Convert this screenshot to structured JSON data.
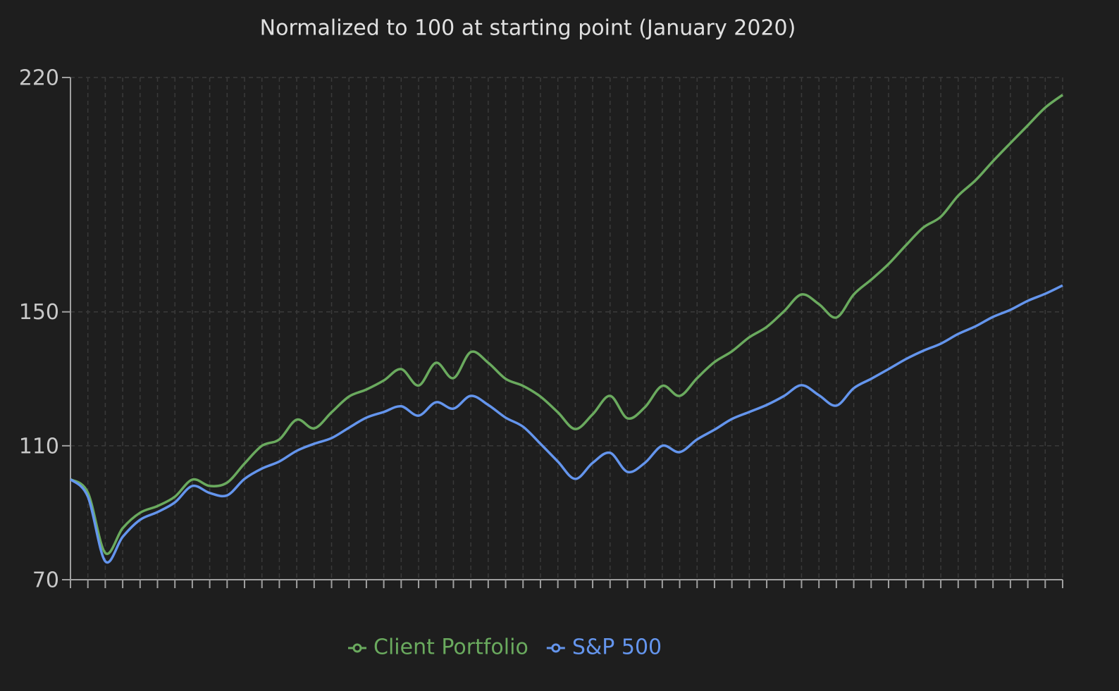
{
  "chart_data": {
    "type": "line",
    "title": "Normalized to 100 at starting point (January 2020)",
    "categories": [
      null,
      null,
      null,
      null,
      null,
      null,
      null,
      null,
      null,
      null,
      null,
      null,
      null,
      null,
      null,
      null,
      null,
      null,
      null,
      null,
      null,
      null,
      null,
      null,
      null,
      null,
      null,
      null,
      null,
      null,
      null,
      null,
      null,
      null,
      null,
      null,
      null,
      null,
      null,
      null,
      null,
      null,
      null,
      null,
      null,
      null,
      null,
      null,
      null,
      null,
      null,
      null,
      null,
      null,
      null,
      null,
      null,
      null
    ],
    "series": [
      {
        "name": "Client Portfolio",
        "color": "#6aaa5e",
        "values": [
          100,
          96,
          78,
          85.4,
          90,
          92,
          94.8,
          99.9,
          98,
          99,
          104.7,
          110,
          111.9,
          117.8,
          115.2,
          120,
          124.7,
          126.8,
          129.5,
          132.9,
          128,
          134.8,
          130.2,
          138,
          134.8,
          130,
          127.9,
          124.7,
          120,
          115,
          119.4,
          124.9,
          118.2,
          121.5,
          127.9,
          124.9,
          130.2,
          135,
          138.2,
          142.4,
          145.5,
          150.2,
          155.2,
          152.3,
          148.3,
          155.2,
          159.6,
          164.3,
          169.9,
          175.2,
          178.4,
          184.7,
          189.3,
          195,
          200.4,
          205.7,
          211,
          214.8
        ]
      },
      {
        "name": "S&P 500",
        "color": "#6495ed",
        "values": [
          100,
          94.8,
          75.5,
          82.8,
          87.9,
          90.2,
          93.1,
          98,
          95.9,
          95.2,
          100.1,
          103.2,
          105.3,
          108.5,
          110.6,
          112.3,
          115.4,
          118.4,
          120.1,
          121.8,
          119,
          123,
          121.1,
          124.9,
          122.2,
          118.4,
          115.7,
          110.6,
          105.3,
          100.1,
          104.9,
          107.9,
          102.2,
          104.9,
          110,
          108.1,
          111.9,
          114.8,
          118,
          120.1,
          122.2,
          124.9,
          128.1,
          125.1,
          122,
          127.2,
          130,
          132.9,
          135.9,
          138.4,
          140.5,
          143.4,
          145.7,
          148.5,
          150.6,
          153.3,
          155.4,
          157.9
        ]
      }
    ],
    "ylim": [
      70,
      220
    ],
    "yticks": [
      70,
      110,
      150,
      220
    ],
    "grid": true
  }
}
